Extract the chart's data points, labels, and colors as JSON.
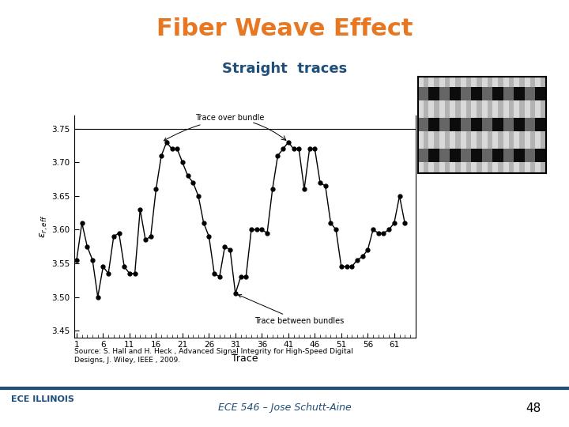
{
  "title": "Fiber Weave Effect",
  "subtitle": "Straight  traces",
  "title_color": "#E87722",
  "subtitle_color": "#1F4E79",
  "xlabel": "Trace",
  "ylabel": "$\\varepsilon_{r, eff}$",
  "source_text": "Source: S. Hall and H. Heck , Advanced Signal Integrity for High-Speed Digital\nDesigns, J. Wiley, IEEE , 2009.",
  "footer_text": "ECE 546 – Jose Schutt-Aine",
  "footer_page": "48",
  "footer_line_color": "#1F4E79",
  "ylim": [
    3.44,
    3.77
  ],
  "yticks": [
    3.45,
    3.5,
    3.55,
    3.6,
    3.65,
    3.7,
    3.75
  ],
  "xticks": [
    1,
    6,
    11,
    16,
    21,
    26,
    31,
    36,
    41,
    46,
    51,
    56,
    61
  ],
  "trace_over_bundle_label": "Trace over bundle",
  "trace_between_bundles_label": "Trace between bundles",
  "x": [
    1,
    2,
    3,
    4,
    5,
    6,
    7,
    8,
    9,
    10,
    11,
    12,
    13,
    14,
    15,
    16,
    17,
    18,
    19,
    20,
    21,
    22,
    23,
    24,
    25,
    26,
    27,
    28,
    29,
    30,
    31,
    32,
    33,
    34,
    35,
    36,
    37,
    38,
    39,
    40,
    41,
    42,
    43,
    44,
    45,
    46,
    47,
    48,
    49,
    50,
    51,
    52,
    53,
    54,
    55,
    56,
    57,
    58,
    59,
    60,
    61,
    62,
    63
  ],
  "y": [
    3.555,
    3.61,
    3.575,
    3.555,
    3.5,
    3.545,
    3.535,
    3.59,
    3.595,
    3.545,
    3.535,
    3.535,
    3.63,
    3.585,
    3.59,
    3.66,
    3.71,
    3.73,
    3.72,
    3.72,
    3.7,
    3.68,
    3.67,
    3.65,
    3.61,
    3.59,
    3.535,
    3.53,
    3.575,
    3.57,
    3.505,
    3.53,
    3.53,
    3.6,
    3.6,
    3.6,
    3.595,
    3.66,
    3.71,
    3.72,
    3.73,
    3.72,
    3.72,
    3.66,
    3.72,
    3.72,
    3.67,
    3.665,
    3.61,
    3.6,
    3.545,
    3.545,
    3.545,
    3.555,
    3.56,
    3.57,
    3.6,
    3.595,
    3.595,
    3.6,
    3.61,
    3.65,
    3.61
  ],
  "line_color": "#000000",
  "marker_color": "#000000",
  "bg_color": "#ffffff",
  "plot_bg_color": "#ffffff"
}
